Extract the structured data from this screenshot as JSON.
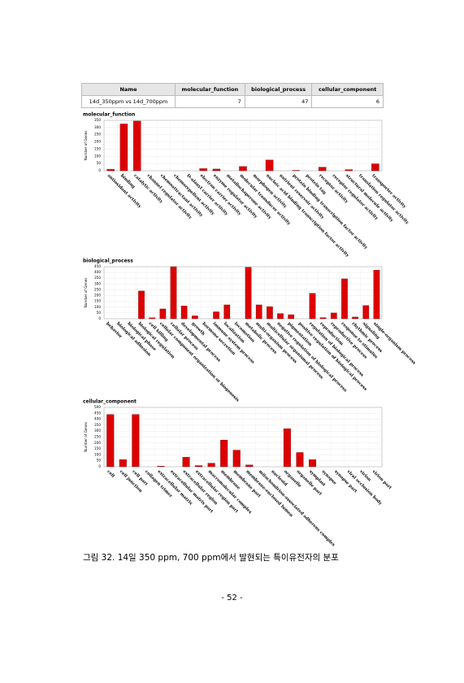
{
  "table": {
    "header": [
      "Name",
      "molecular_function",
      "biological_process",
      "cellular_component"
    ],
    "rows": [
      [
        "14d_350ppm vs 14d_700ppm",
        7,
        47,
        6
      ]
    ]
  },
  "chart_data": [
    {
      "type": "bar",
      "title": "molecular_function",
      "y_label": "Number of Genes",
      "color": "#dd0000",
      "grid": true,
      "categories": [
        "antioxidant activity",
        "binding",
        "catalytic activity",
        "channel regulator activity",
        "chemoattractant activity",
        "chemorepellent activity",
        "D-alanyl carrier activity",
        "electron carrier activity",
        "enzyme regulator activity",
        "metallochaperone activity",
        "molecular transducer activity",
        "morphogen activity",
        "nucleic acid binding transcription factor activity",
        "nutrient reservoir activity",
        "protein binding transcription factor activity",
        "protein tag",
        "receptor activity",
        "receptor regulator activity",
        "structural molecule activity",
        "translation regulator activity",
        "transporter activity"
      ],
      "values": [
        10,
        325,
        345,
        0,
        0,
        0,
        0,
        15,
        12,
        0,
        30,
        0,
        75,
        0,
        3,
        0,
        25,
        0,
        8,
        0,
        48
      ],
      "ylim": [
        0,
        350
      ],
      "yticks": [
        0,
        50,
        100,
        150,
        200,
        250,
        300,
        350
      ]
    },
    {
      "type": "bar",
      "title": "biological_process",
      "y_label": "Number of Genes",
      "color": "#dd0000",
      "grid": true,
      "categories": [
        "behavior",
        "biological adhesion",
        "biological phase",
        "biological regulation",
        "cell killing",
        "cellular component organization or biogenesis",
        "cellular process",
        "developmental process",
        "growth",
        "hormone secretion",
        "immune system process",
        "localization",
        "locomotion",
        "metabolic process",
        "multi-organism process",
        "multicellular organismal process",
        "negative regulation of biological process",
        "pigmentation",
        "positive regulation of biological process",
        "regulation of biological process",
        "reproduction",
        "reproductive process",
        "response to stimulus",
        "rhythmic process",
        "signaling",
        "single-organism process"
      ],
      "values": [
        0,
        0,
        0,
        240,
        8,
        85,
        450,
        110,
        25,
        0,
        60,
        120,
        0,
        445,
        120,
        105,
        45,
        35,
        0,
        220,
        10,
        50,
        345,
        15,
        115,
        420
      ],
      "ylim": [
        0,
        450
      ],
      "yticks": [
        0,
        50,
        100,
        150,
        200,
        250,
        300,
        350,
        400,
        450
      ]
    },
    {
      "type": "bar",
      "title": "cellular_component",
      "y_label": "Number of Genes",
      "color": "#dd0000",
      "grid": true,
      "categories": [
        "cell",
        "cell junction",
        "cell part",
        "collagen trimer",
        "extracellular matrix",
        "extracellular matrix part",
        "extracellular region",
        "extracellular region part",
        "macromolecular complex",
        "membrane",
        "membrane part",
        "membrane-enclosed lumen",
        "mitochondrion-associated adherens complex",
        "nucleoid",
        "organelle",
        "organelle part",
        "symplast",
        "synapse",
        "synapse part",
        "viral occlusion body",
        "virion",
        "virion part"
      ],
      "values": [
        440,
        60,
        440,
        0,
        5,
        0,
        80,
        10,
        30,
        225,
        140,
        15,
        0,
        0,
        320,
        120,
        60,
        0,
        0,
        0,
        0,
        0
      ],
      "ylim": [
        0,
        500
      ],
      "yticks": [
        0,
        50,
        100,
        150,
        200,
        250,
        300,
        350,
        400,
        450,
        500
      ]
    }
  ],
  "caption": "그림 32. 14일 350 ppm, 700 ppm에서 발현되는 특이유전자의 분포",
  "page_number": "- 52 -"
}
